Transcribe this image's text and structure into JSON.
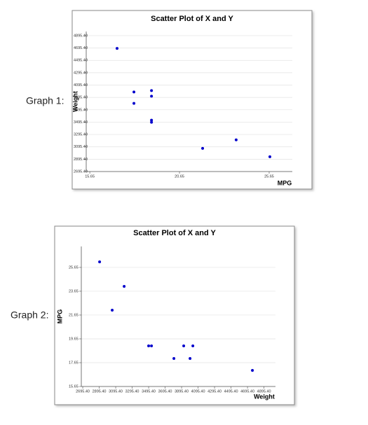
{
  "chart_data": [
    {
      "type": "scatter",
      "caption": "Graph 1:",
      "title": "Scatter Plot of X and Y",
      "xlabel": "MPG",
      "ylabel": "Weight",
      "color": "#0000cc",
      "grid": true,
      "x": [
        17.17,
        18.11,
        18.11,
        19.09,
        19.09,
        19.09,
        19.09,
        21.94,
        23.81,
        25.69
      ],
      "values": [
        4689,
        3983,
        3800,
        4006,
        3915,
        3527,
        3493,
        3071,
        3208,
        2935
      ],
      "xlim": [
        15.45,
        26.94
      ],
      "xticks": [
        15.65,
        20.65,
        25.65
      ],
      "ylim": [
        2695.4,
        4963
      ],
      "yticks": [
        {
          "value": 2695.4,
          "label": "2695.40"
        },
        {
          "value": 2895.4,
          "label": "2895.40"
        },
        {
          "value": 3095.4,
          "label": "3095.40"
        },
        {
          "value": 3295.4,
          "label": "3295.40"
        },
        {
          "value": 3495.4,
          "label": "3495.40"
        },
        {
          "value": 3695.4,
          "label": "3695.40"
        },
        {
          "value": 3895.4,
          "label": "3895.40"
        },
        {
          "value": 4095.4,
          "label": "4095.40"
        },
        {
          "value": 4295.4,
          "label": "4295.40"
        },
        {
          "value": 4495.4,
          "label": "4495.40"
        },
        {
          "value": 4695.4,
          "label": "4695.40"
        },
        {
          "value": 4895.4,
          "label": "4895.40"
        }
      ]
    },
    {
      "type": "scatter",
      "caption": "Graph 2:",
      "title": "Scatter Plot of X and Y",
      "xlabel": "Weight",
      "ylabel": "MPG",
      "color": "#0000cc",
      "grid": true,
      "x": [
        2900,
        3053,
        3198,
        3495,
        3530,
        3802,
        3921,
        3998,
        4032,
        4755
      ],
      "values": [
        26.12,
        22.06,
        24.06,
        19.06,
        19.06,
        18.0,
        19.06,
        18.0,
        19.06,
        17.0
      ],
      "xlim": [
        2678,
        5035
      ],
      "xticks": [
        {
          "value": 2695.4,
          "label": "2695.40"
        },
        {
          "value": 2895.4,
          "label": "2895.40"
        },
        {
          "value": 3095.4,
          "label": "3095.40"
        },
        {
          "value": 3295.4,
          "label": "3295.40"
        },
        {
          "value": 3495.4,
          "label": "3495.40"
        },
        {
          "value": 3695.4,
          "label": "3695.40"
        },
        {
          "value": 3895.4,
          "label": "3895.40"
        },
        {
          "value": 4095.4,
          "label": "4095.40"
        },
        {
          "value": 4295.4,
          "label": "4295.40"
        },
        {
          "value": 4495.4,
          "label": "4495.40"
        },
        {
          "value": 4695.4,
          "label": "4695.40"
        },
        {
          "value": 4895.4,
          "label": "4895.40"
        }
      ],
      "ylim": [
        15.65,
        27.41
      ],
      "yticks": [
        15.65,
        17.65,
        19.65,
        21.65,
        23.65,
        25.65
      ]
    }
  ]
}
